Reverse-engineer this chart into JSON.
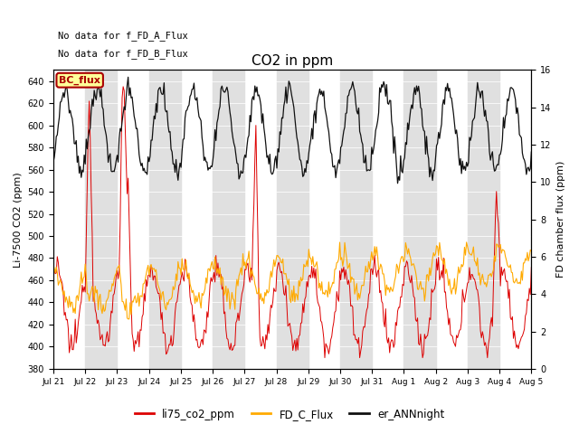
{
  "title": "CO2 in ppm",
  "ylabel_left": "Li-7500 CO2 (ppm)",
  "ylabel_right": "FD chamber flux (ppm)",
  "ylim_left": [
    380,
    650
  ],
  "ylim_right": [
    0,
    16
  ],
  "yticks_left": [
    380,
    400,
    420,
    440,
    460,
    480,
    500,
    520,
    540,
    560,
    580,
    600,
    620,
    640
  ],
  "yticks_right": [
    0,
    2,
    4,
    6,
    8,
    10,
    12,
    14,
    16
  ],
  "color_red": "#dd0000",
  "color_orange": "#ffaa00",
  "color_black": "#111111",
  "color_bg_gray": "#e0e0e0",
  "legend_labels": [
    "li75_co2_ppm",
    "FD_C_Flux",
    "er_ANNnight"
  ],
  "text_no_data_1": "No data for f_FD_A_Flux",
  "text_no_data_2": "No data for f_FD_B_Flux",
  "bc_flux_label": "BC_flux",
  "bc_flux_color": "#ffff99",
  "bc_flux_border": "#aa0000",
  "n_points": 480,
  "date_labels": [
    "Jul 21",
    "Jul 22",
    "Jul 23",
    "Jul 24",
    "Jul 25",
    "Jul 26",
    "Jul 27",
    "Jul 28",
    "Jul 29",
    "Jul 30",
    "Jul 31",
    "Aug 1",
    "Aug 2",
    "Aug 3",
    "Aug 4",
    "Aug 5"
  ],
  "figsize": [
    6.4,
    4.8
  ],
  "dpi": 100
}
